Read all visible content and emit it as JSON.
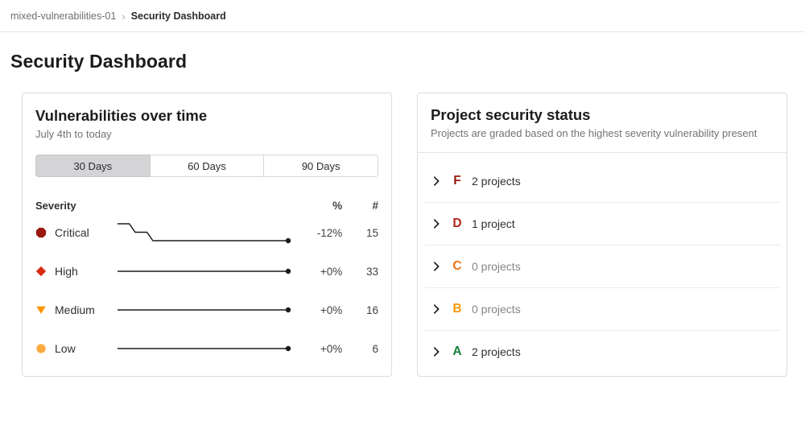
{
  "breadcrumb": {
    "parent": "mixed-vulnerabilities-01",
    "separator": "›",
    "current": "Security Dashboard"
  },
  "page": {
    "title": "Security Dashboard"
  },
  "vuln_card": {
    "title": "Vulnerabilities over time",
    "subtitle": "July 4th to today",
    "tabs": [
      {
        "label": "30 Days",
        "selected": true
      },
      {
        "label": "60 Days",
        "selected": false
      },
      {
        "label": "90 Days",
        "selected": false
      }
    ],
    "table": {
      "headers": {
        "severity": "Severity",
        "percent": "%",
        "count": "#"
      },
      "rows": [
        {
          "severity": "Critical",
          "icon": "critical-severity-icon",
          "shape": "octagon",
          "color": "#99190f",
          "percent": "-12%",
          "count": "15"
        },
        {
          "severity": "High",
          "icon": "high-severity-icon",
          "shape": "diamond",
          "color": "#d92b0f",
          "percent": "+0%",
          "count": "33"
        },
        {
          "severity": "Medium",
          "icon": "medium-severity-icon",
          "shape": "triangle-down",
          "color": "#fc9403",
          "percent": "+0%",
          "count": "16"
        },
        {
          "severity": "Low",
          "icon": "low-severity-icon",
          "shape": "circle",
          "color": "#fcab3f",
          "percent": "+0%",
          "count": "6"
        }
      ]
    }
  },
  "chart_data": {
    "type": "line",
    "title": "Vulnerabilities over time",
    "subtitle": "July 4th to today",
    "x_range_label": "30 Days",
    "x_points": 30,
    "legend_position": "left-row-labels",
    "grid": false,
    "line_color": "#1b1b1f",
    "series": [
      {
        "name": "Critical",
        "change_percent": "-12%",
        "end_value": 15,
        "values": [
          17,
          17,
          17,
          16,
          16,
          16,
          15,
          15,
          15,
          15,
          15,
          15,
          15,
          15,
          15,
          15,
          15,
          15,
          15,
          15,
          15,
          15,
          15,
          15,
          15,
          15,
          15,
          15,
          15,
          15
        ]
      },
      {
        "name": "High",
        "change_percent": "+0%",
        "end_value": 33,
        "values": [
          33,
          33,
          33,
          33,
          33,
          33,
          33,
          33,
          33,
          33,
          33,
          33,
          33,
          33,
          33,
          33,
          33,
          33,
          33,
          33,
          33,
          33,
          33,
          33,
          33,
          33,
          33,
          33,
          33,
          33
        ]
      },
      {
        "name": "Medium",
        "change_percent": "+0%",
        "end_value": 16,
        "values": [
          16,
          16,
          16,
          16,
          16,
          16,
          16,
          16,
          16,
          16,
          16,
          16,
          16,
          16,
          16,
          16,
          16,
          16,
          16,
          16,
          16,
          16,
          16,
          16,
          16,
          16,
          16,
          16,
          16,
          16
        ]
      },
      {
        "name": "Low",
        "change_percent": "+0%",
        "end_value": 6,
        "values": [
          6,
          6,
          6,
          6,
          6,
          6,
          6,
          6,
          6,
          6,
          6,
          6,
          6,
          6,
          6,
          6,
          6,
          6,
          6,
          6,
          6,
          6,
          6,
          6,
          6,
          6,
          6,
          6,
          6,
          6
        ]
      }
    ]
  },
  "status_card": {
    "title": "Project security status",
    "subtitle": "Projects are graded based on the highest severity vulnerability present",
    "rows": [
      {
        "grade": "F",
        "grade_color": "#99190f",
        "text": "2 projects",
        "text_color": "#2f2f33"
      },
      {
        "grade": "D",
        "grade_color": "#b2271a",
        "text": "1 project",
        "text_color": "#2f2f33"
      },
      {
        "grade": "C",
        "grade_color": "#ee7211",
        "text": "0 projects",
        "text_color": "#85858a"
      },
      {
        "grade": "B",
        "grade_color": "#f79a0a",
        "text": "0 projects",
        "text_color": "#85858a"
      },
      {
        "grade": "A",
        "grade_color": "#17813e",
        "text": "2 projects",
        "text_color": "#2f2f33"
      }
    ]
  }
}
